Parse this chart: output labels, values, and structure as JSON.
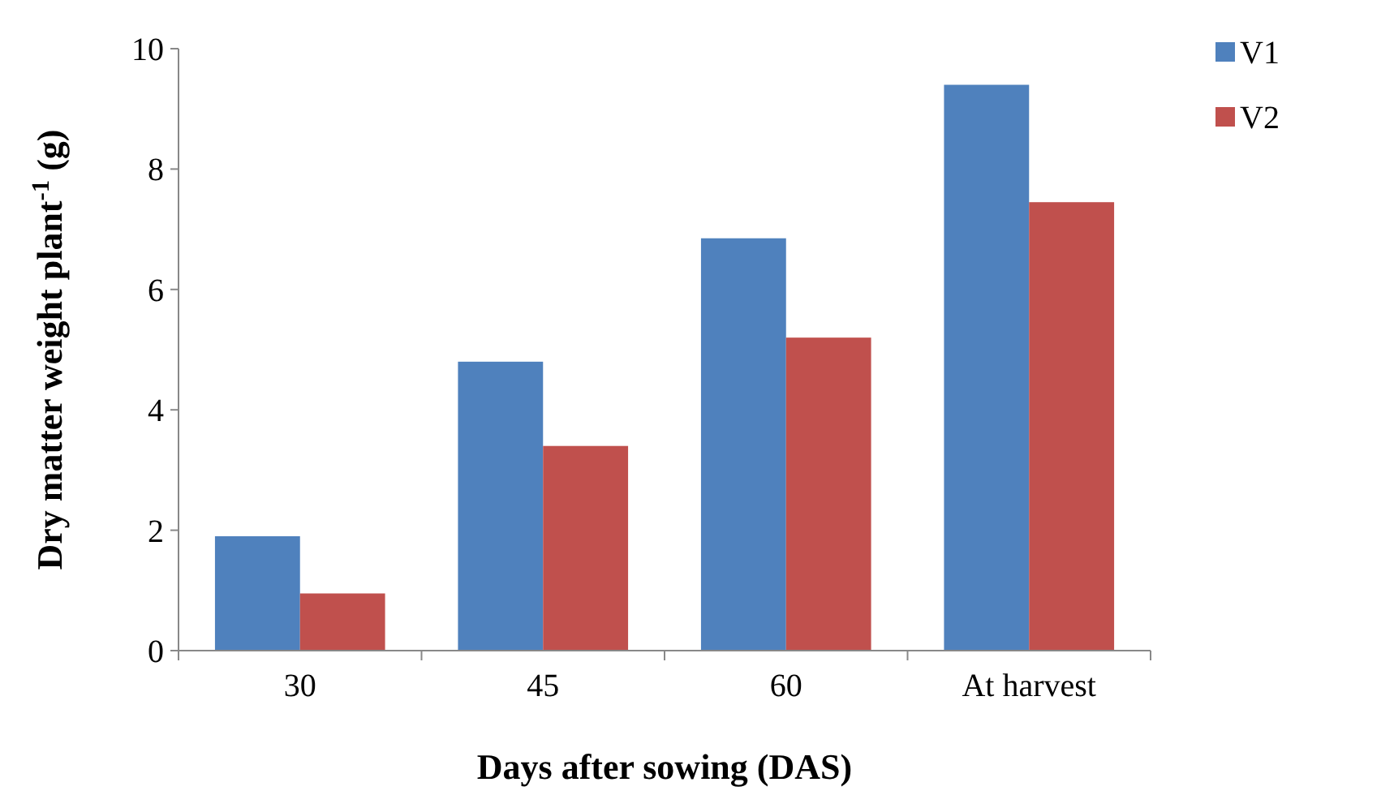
{
  "chart_data": {
    "type": "bar",
    "xlabel": "Days after sowing (DAS)",
    "ylabel": "Dry matter weight plant$^{-1}$ (g)",
    "categories": [
      "30",
      "45",
      "60",
      "At harvest"
    ],
    "series": [
      {
        "name": "V1",
        "color": "#4f81bd",
        "values": [
          1.9,
          4.8,
          6.85,
          9.4
        ]
      },
      {
        "name": "V2",
        "color": "#c0504d",
        "values": [
          0.95,
          3.4,
          5.2,
          7.45
        ]
      }
    ],
    "ylim": [
      0,
      10
    ],
    "yticks": [
      0,
      2,
      4,
      6,
      8,
      10
    ],
    "grid": false,
    "legend": "top right"
  }
}
